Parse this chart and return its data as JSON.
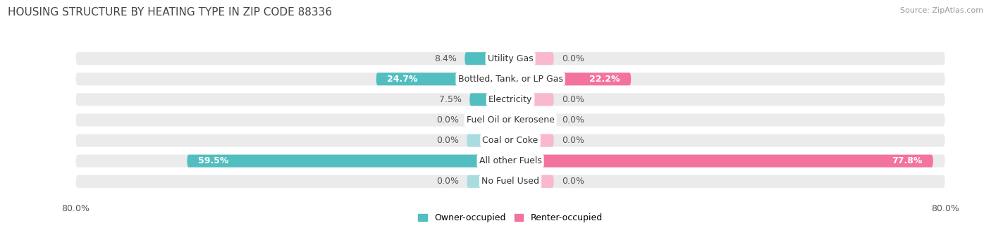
{
  "title": "HOUSING STRUCTURE BY HEATING TYPE IN ZIP CODE 88336",
  "source": "Source: ZipAtlas.com",
  "categories": [
    "Utility Gas",
    "Bottled, Tank, or LP Gas",
    "Electricity",
    "Fuel Oil or Kerosene",
    "Coal or Coke",
    "All other Fuels",
    "No Fuel Used"
  ],
  "owner_values": [
    8.4,
    24.7,
    7.5,
    0.0,
    0.0,
    59.5,
    0.0
  ],
  "renter_values": [
    0.0,
    22.2,
    0.0,
    0.0,
    0.0,
    77.8,
    0.0
  ],
  "owner_color": "#52BEC0",
  "owner_color_light": "#A8DDE0",
  "renter_color": "#F472A0",
  "renter_color_light": "#F9B8D0",
  "owner_label": "Owner-occupied",
  "renter_label": "Renter-occupied",
  "xlim": 80.0,
  "bar_height": 0.62,
  "row_bg_color": "#ebebeb",
  "figure_bg_color": "#ffffff",
  "title_fontsize": 11,
  "axis_fontsize": 9,
  "label_fontsize": 9,
  "category_fontsize": 9,
  "zero_bar_width": 8.0,
  "title_color": "#444444",
  "source_color": "#999999",
  "value_color_dark": "#555555",
  "value_color_white": "#ffffff"
}
